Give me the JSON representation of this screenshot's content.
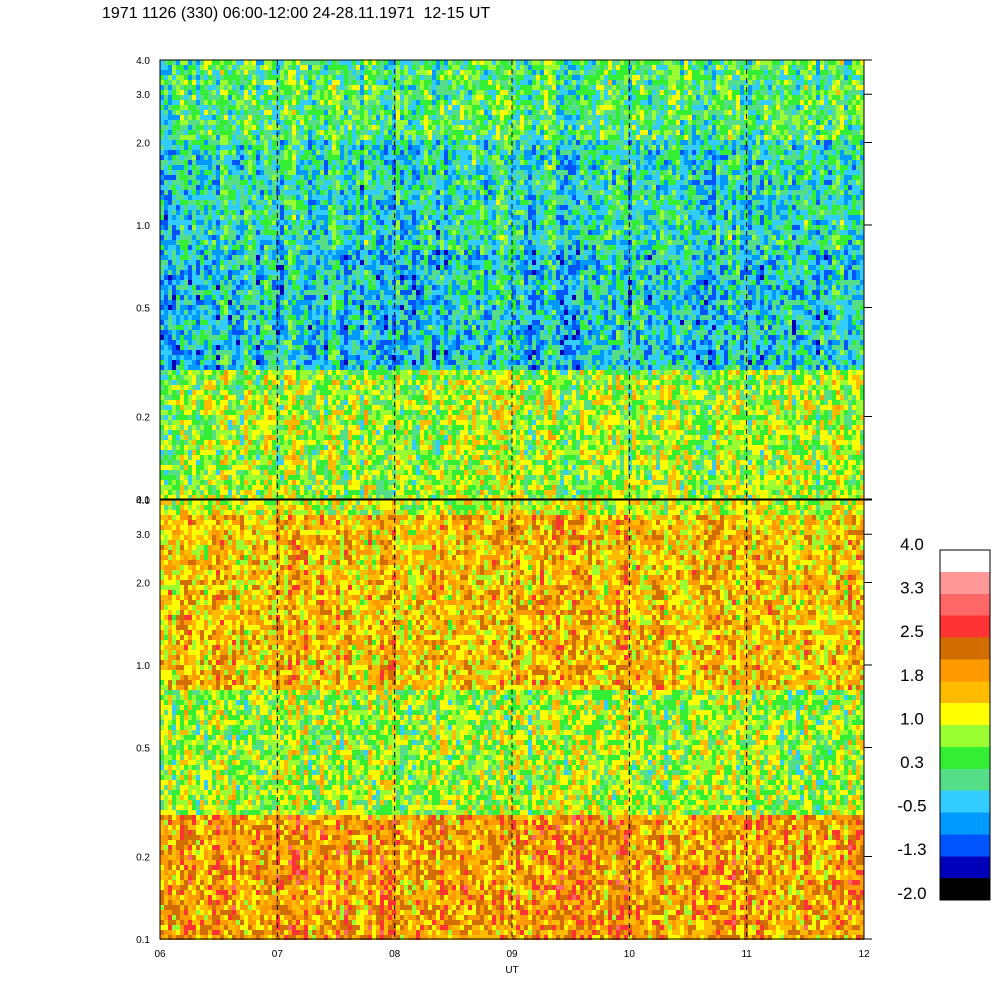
{
  "title": "1971 1126 (330) 06:00-12:00 24-28.11.1971  12-15 UT",
  "chart_data": [
    {
      "type": "heatmap",
      "panel": "upper",
      "xlabel": "",
      "ylabel": "",
      "ylim": [
        0.1,
        4.0
      ],
      "yscale": "log",
      "xlim": [
        6,
        12
      ],
      "y_ticks": [
        "0.1",
        "0.2",
        "0.5",
        "1.0",
        "2.0",
        "3.0",
        "4.0"
      ],
      "y_tick_values": [
        0.1,
        0.2,
        0.5,
        1.0,
        2.0,
        3.0,
        4.0
      ],
      "vertical_dashed_lines_at": [
        7,
        8,
        9,
        10,
        11
      ],
      "band_levels": [
        {
          "y_from": 0.1,
          "y_to": 0.3,
          "level": 0.8
        },
        {
          "y_from": 0.3,
          "y_to": 0.8,
          "level": -0.3
        },
        {
          "y_from": 0.8,
          "y_to": 2.0,
          "level": -0.1
        },
        {
          "y_from": 2.0,
          "y_to": 4.0,
          "level": 0.3
        }
      ]
    },
    {
      "type": "heatmap",
      "panel": "lower",
      "xlabel": "UT",
      "ylabel": "",
      "ylim": [
        0.1,
        4.0
      ],
      "yscale": "log",
      "xlim": [
        6,
        12
      ],
      "x_ticks": [
        "06",
        "07",
        "08",
        "09",
        "10",
        "11",
        "12"
      ],
      "x_tick_values": [
        6,
        7,
        8,
        9,
        10,
        11,
        12
      ],
      "y_ticks": [
        "0.1",
        "0.2",
        "0.5",
        "1.0",
        "2.0",
        "3.0",
        "4.0"
      ],
      "y_tick_values": [
        0.1,
        0.2,
        0.5,
        1.0,
        2.0,
        3.0,
        4.0
      ],
      "vertical_dashed_lines_at": [
        7,
        8,
        9,
        10,
        11
      ],
      "band_levels": [
        {
          "y_from": 0.1,
          "y_to": 0.28,
          "level": 1.9
        },
        {
          "y_from": 0.28,
          "y_to": 0.8,
          "level": 0.8
        },
        {
          "y_from": 0.8,
          "y_to": 1.2,
          "level": 1.6
        },
        {
          "y_from": 1.2,
          "y_to": 3.5,
          "level": 1.6
        },
        {
          "y_from": 3.5,
          "y_to": 4.0,
          "level": 1.0
        }
      ]
    }
  ],
  "colorbar": {
    "labels": [
      "4.0",
      "3.3",
      "2.5",
      "1.8",
      "1.0",
      "0.3",
      "-0.5",
      "-1.3",
      "-2.0"
    ],
    "colors_top_to_bottom": [
      "#ffffff",
      "#ff9999",
      "#ff6666",
      "#ff3333",
      "#d26e00",
      "#ff9900",
      "#ffbb00",
      "#ffff00",
      "#99ff33",
      "#33ee33",
      "#55dd88",
      "#33ccff",
      "#0099ff",
      "#0055ff",
      "#0000bb",
      "#000000"
    ]
  }
}
